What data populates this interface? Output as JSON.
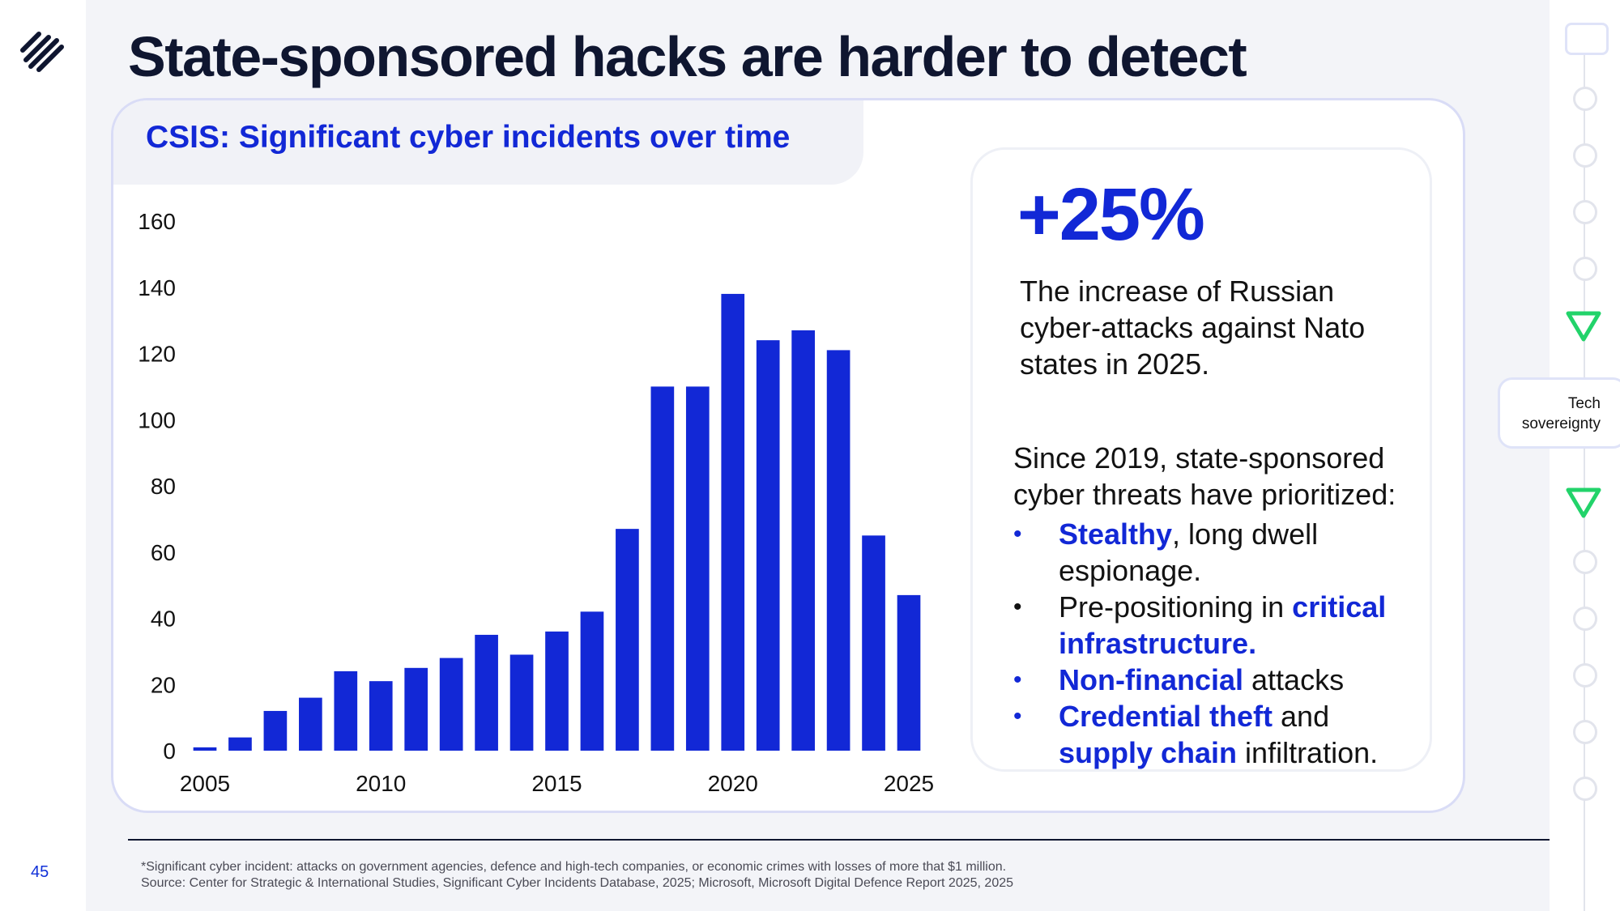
{
  "page": {
    "number": "45",
    "title": "State-sponsored hacks are harder to detect"
  },
  "card": {
    "title": "CSIS: Significant cyber incidents over time"
  },
  "stat": {
    "value": "+25%",
    "description": "The increase of Russian cyber-attacks against Nato states in 2025.",
    "intro": "Since 2019, state-sponsored cyber threats have prioritized:",
    "bullets": [
      {
        "dot": "•",
        "parts": [
          {
            "text": "Stealthy",
            "hl": true
          },
          {
            "text": ", long dwell espionage.",
            "hl": false
          }
        ]
      },
      {
        "dot": "•",
        "parts": [
          {
            "text": "Pre-positioning in ",
            "hl": false
          },
          {
            "text": "critical infrastructure",
            "hl": true
          },
          {
            "text": ".",
            "hl": false
          }
        ]
      },
      {
        "dot": "•",
        "parts": [
          {
            "text": "Non-financial",
            "hl": true
          },
          {
            "text": " attacks",
            "hl": false
          }
        ]
      },
      {
        "dot": "•",
        "parts": [
          {
            "text": "Credential theft",
            "hl": true
          },
          {
            "text": " and ",
            "hl": false
          },
          {
            "text": "supply chain",
            "hl": true
          },
          {
            "text": " infiltration.",
            "hl": false
          }
        ]
      }
    ]
  },
  "footnote": {
    "line1": "*Significant cyber incident: attacks on government agencies, defence and high-tech companies, or economic crimes with losses of more that $1 million.",
    "line2": "Source: Center for Strategic & International Studies, Significant Cyber Incidents Database, 2025; Microsoft, Microsoft Digital Defence Report 2025, 2025"
  },
  "rail": {
    "label_line1": "Tech",
    "label_line2": "sovereignty"
  },
  "colors": {
    "accent": "#1228d6",
    "navy": "#0f1630",
    "rail_green": "#22d36a"
  },
  "icons": [
    "logo-icon",
    "triangle-down-icon"
  ],
  "chart_data": {
    "type": "bar",
    "title": "CSIS: Significant cyber incidents over time",
    "xlabel": "",
    "ylabel": "",
    "x": [
      2005,
      2006,
      2007,
      2008,
      2009,
      2010,
      2011,
      2012,
      2013,
      2014,
      2015,
      2016,
      2017,
      2018,
      2019,
      2020,
      2021,
      2022,
      2023,
      2024,
      2025
    ],
    "values": [
      1,
      4,
      12,
      16,
      24,
      21,
      25,
      28,
      35,
      29,
      36,
      42,
      67,
      110,
      110,
      138,
      124,
      127,
      121,
      65,
      47
    ],
    "ylim": [
      0,
      160
    ],
    "yticks": [
      0,
      20,
      40,
      60,
      80,
      100,
      120,
      140,
      160
    ],
    "xticks": [
      2005,
      2010,
      2015,
      2020,
      2025
    ],
    "grid": false,
    "bar_color": "#1228d6"
  }
}
